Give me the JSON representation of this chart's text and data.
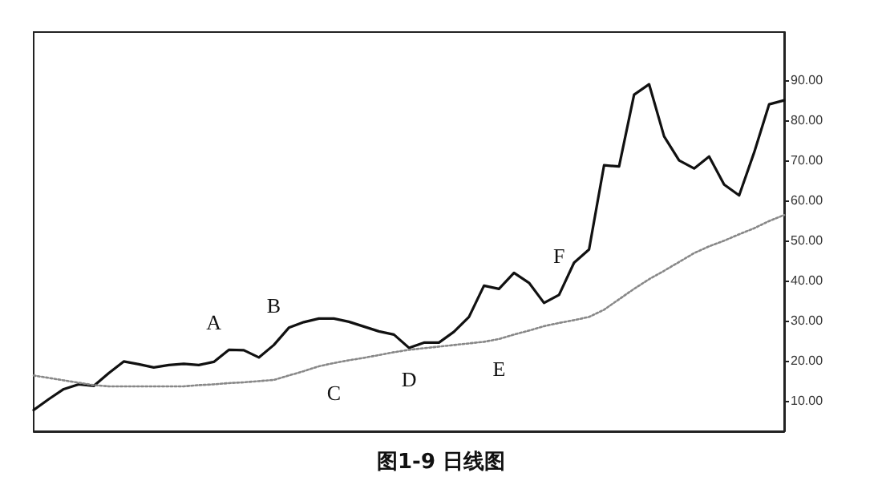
{
  "chart_data": {
    "type": "line",
    "title": "图1-9 日线图",
    "ylim": [
      2.5,
      102
    ],
    "categories": [
      null,
      null,
      null,
      null,
      null,
      null,
      null,
      null,
      null,
      null,
      null,
      null,
      null,
      null,
      null,
      null,
      null,
      null,
      null,
      null,
      null,
      null,
      null,
      null,
      null,
      null,
      null,
      null,
      null,
      null,
      null,
      null,
      null,
      null,
      null,
      null,
      null,
      null,
      null,
      null,
      null,
      null,
      null,
      null,
      null,
      null,
      null,
      null,
      null,
      null,
      null
    ],
    "yticks": [
      {
        "value": 10,
        "label": "10.00"
      },
      {
        "value": 20,
        "label": "20.00"
      },
      {
        "value": 30,
        "label": "30.00"
      },
      {
        "value": 40,
        "label": "40.00"
      },
      {
        "value": 50,
        "label": "50.00"
      },
      {
        "value": 60,
        "label": "60.00"
      },
      {
        "value": 70,
        "label": "70.00"
      },
      {
        "value": 80,
        "label": "80.00"
      },
      {
        "value": 90,
        "label": "90.00"
      }
    ],
    "tick_labels": "y",
    "grid": false,
    "marker": "none",
    "series": [
      {
        "color": "#111111",
        "line_style": "solid",
        "values": [
          7.8,
          10.5,
          13,
          14.2,
          13.8,
          17,
          19.9,
          19.2,
          18.4,
          19,
          19.3,
          19,
          19.8,
          22.8,
          22.7,
          20.9,
          24,
          28.3,
          29.7,
          30.6,
          30.6,
          29.8,
          28.6,
          27.4,
          26.6,
          23.3,
          24.6,
          24.6,
          27.3,
          31,
          38.8,
          38,
          42,
          39.5,
          34.5,
          36.5,
          44.5,
          47.8,
          68.8,
          68.5,
          86.4,
          89,
          76,
          70,
          68,
          71,
          64,
          61.3,
          72,
          84,
          85
        ],
        "value_labels": [
          null,
          null,
          null,
          null,
          null,
          null,
          null,
          null,
          null,
          null,
          null,
          null,
          "A",
          null,
          null,
          null,
          "B",
          null,
          null,
          null,
          null,
          null,
          null,
          null,
          null,
          null,
          null,
          null,
          null,
          null,
          null,
          null,
          null,
          null,
          null,
          "F",
          null,
          null,
          null,
          null,
          null,
          null,
          null,
          null,
          null,
          null,
          null,
          null,
          null,
          null,
          null
        ]
      },
      {
        "color": "#888888",
        "line_style": "dotted",
        "values": [
          16.4,
          15.8,
          15.2,
          14.6,
          14,
          13.7,
          13.7,
          13.7,
          13.7,
          13.7,
          13.7,
          14,
          14.2,
          14.5,
          14.7,
          15,
          15.3,
          16.4,
          17.5,
          18.7,
          19.5,
          20.2,
          20.8,
          21.5,
          22.2,
          22.8,
          23.2,
          23.6,
          24,
          24.4,
          24.8,
          25.5,
          26.6,
          27.6,
          28.7,
          29.5,
          30.2,
          31,
          32.8,
          35.4,
          38,
          40.4,
          42.5,
          44.7,
          46.9,
          48.6,
          50,
          51.6,
          53.1,
          54.9,
          56.4
        ],
        "value_labels": [
          null,
          null,
          null,
          null,
          null,
          null,
          null,
          null,
          null,
          null,
          null,
          null,
          null,
          null,
          null,
          null,
          null,
          null,
          null,
          null,
          "C",
          null,
          null,
          null,
          null,
          "D",
          null,
          null,
          null,
          null,
          null,
          "E",
          null,
          null,
          null,
          null,
          null,
          null,
          null,
          null,
          null,
          null,
          null,
          null,
          null,
          null,
          null,
          null,
          null,
          null,
          null
        ]
      }
    ]
  }
}
